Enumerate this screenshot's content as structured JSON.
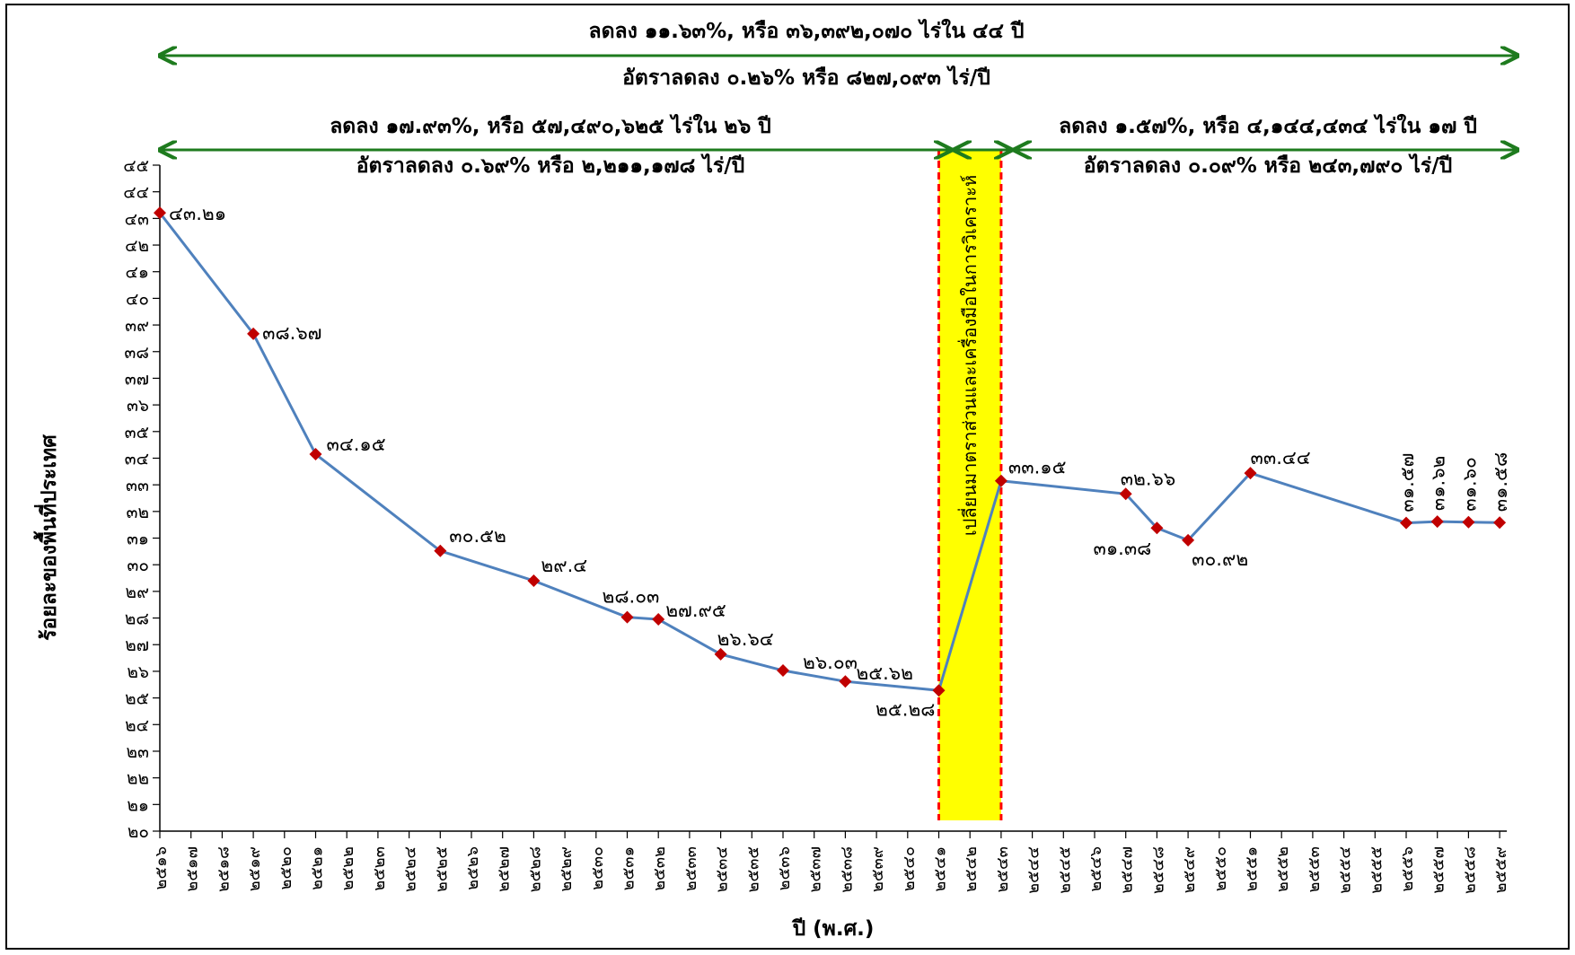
{
  "chart_data": {
    "type": "line",
    "ylabel": "ร้อยละของพื้นที่ประเทศ",
    "xlabel": "ปี (พ.ศ.)",
    "ylim": [
      20,
      45
    ],
    "y_ticks": [
      "๒๐",
      "๒๑",
      "๒๒",
      "๒๓",
      "๒๔",
      "๒๕",
      "๒๖",
      "๒๗",
      "๒๘",
      "๒๙",
      "๓๐",
      "๓๑",
      "๓๒",
      "๓๓",
      "๓๔",
      "๓๕",
      "๓๖",
      "๓๗",
      "๓๘",
      "๓๙",
      "๔๐",
      "๔๑",
      "๔๒",
      "๔๓",
      "๔๔",
      "๔๕"
    ],
    "x_labels": [
      "๒๕๑๖",
      "๒๕๑๗",
      "๒๕๑๘",
      "๒๕๑๙",
      "๒๕๒๐",
      "๒๕๒๑",
      "๒๕๒๒",
      "๒๕๒๓",
      "๒๕๒๔",
      "๒๕๒๕",
      "๒๕๒๖",
      "๒๕๒๗",
      "๒๕๒๘",
      "๒๕๒๙",
      "๒๕๓๐",
      "๒๕๓๑",
      "๒๕๓๒",
      "๒๕๓๓",
      "๒๕๓๔",
      "๒๕๓๕",
      "๒๕๓๖",
      "๒๕๓๗",
      "๒๕๓๘",
      "๒๕๓๙",
      "๒๕๔๐",
      "๒๕๔๑",
      "๒๕๔๒",
      "๒๕๔๓",
      "๒๕๔๔",
      "๒๕๔๕",
      "๒๕๔๖",
      "๒๕๔๗",
      "๒๕๔๘",
      "๒๕๔๙",
      "๒๕๕๐",
      "๒๕๕๑",
      "๒๕๕๒",
      "๒๕๕๓",
      "๒๕๕๔",
      "๒๕๕๕",
      "๒๕๕๖",
      "๒๕๕๗",
      "๒๕๕๘",
      "๒๕๕๙"
    ],
    "series": [
      {
        "color": "#4f81bd",
        "marker_color": "#c00000",
        "points": [
          {
            "year": 2516,
            "value": 43.21,
            "label": "๔๓.๒๑"
          },
          {
            "year": 2519,
            "value": 38.67,
            "label": "๓๘.๖๗"
          },
          {
            "year": 2521,
            "value": 34.15,
            "label": "๓๔.๑๕"
          },
          {
            "year": 2525,
            "value": 30.52,
            "label": "๓๐.๕๒"
          },
          {
            "year": 2528,
            "value": 29.4,
            "label": "๒๙.๔"
          },
          {
            "year": 2531,
            "value": 28.03,
            "label": "๒๘.๐๓"
          },
          {
            "year": 2532,
            "value": 27.95,
            "label": "๒๗.๙๕"
          },
          {
            "year": 2534,
            "value": 26.64,
            "label": "๒๖.๖๔"
          },
          {
            "year": 2536,
            "value": 26.03,
            "label": "๒๖.๐๓"
          },
          {
            "year": 2538,
            "value": 25.62,
            "label": "๒๕.๖๒"
          },
          {
            "year": 2541,
            "value": 25.28,
            "label": "๒๕.๒๘"
          },
          {
            "year": 2543,
            "value": 33.15,
            "label": "๓๓.๑๕"
          },
          {
            "year": 2547,
            "value": 32.66,
            "label": "๓๒.๖๖"
          },
          {
            "year": 2548,
            "value": 31.38,
            "label": "๓๑.๓๘"
          },
          {
            "year": 2549,
            "value": 30.92,
            "label": "๓๐.๙๒"
          },
          {
            "year": 2551,
            "value": 33.44,
            "label": "๓๓.๔๔"
          },
          {
            "year": 2556,
            "value": 31.57,
            "label": "๓๑.๕๗"
          },
          {
            "year": 2557,
            "value": 31.62,
            "label": "๓๑.๖๒"
          },
          {
            "year": 2558,
            "value": 31.6,
            "label": "๓๑.๖๐"
          },
          {
            "year": 2559,
            "value": 31.58,
            "label": "๓๑.๕๘"
          }
        ]
      }
    ],
    "highlight": {
      "from_year": 2541,
      "to_year": 2543,
      "color": "#ffff00",
      "border_color": "#ff0000",
      "text": "เปลี่ยนมาตราส่วนและเครื่องมือในการวิเคราะห์"
    },
    "annotations": {
      "overall_line1": "ลดลง ๑๑.๖๓%, หรือ ๓๖,๓๙๒,๐๗๐ ไร่ใน ๔๔ ปี",
      "overall_line2": "อัตราลดลง ๐.๒๖% หรือ ๘๒๗,๐๙๓ ไร่/ปี",
      "left_line1": "ลดลง ๑๗.๙๓%, หรือ ๕๗,๔๙๐,๖๒๕ ไร่ใน ๒๖ ปี",
      "left_line2": "อัตราลดลง ๐.๖๙% หรือ ๒,๒๑๑,๑๗๘ ไร่/ปี",
      "right_line1": "ลดลง ๑.๕๗%, หรือ ๔,๑๔๔,๔๓๔ ไร่ใน ๑๗ ปี",
      "right_line2": "อัตราลดลง ๐.๐๙% หรือ ๒๔๓,๗๙๐ ไร่/ปี",
      "arrow_color": "#1e7b1e"
    }
  }
}
